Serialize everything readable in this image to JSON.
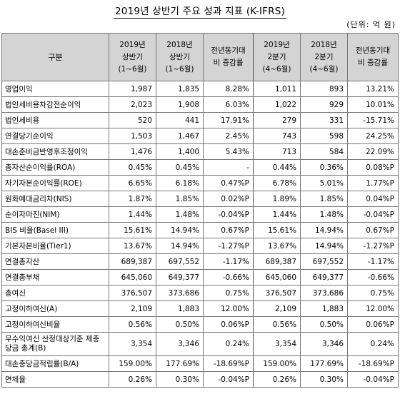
{
  "title": "2019년 상반기 주요 성과 지표 (K-IFRS)",
  "unit": "(단위: 억 원)",
  "headers": {
    "category": "구분",
    "h1_2019": [
      "2019년",
      "상반기",
      "(1~6월)"
    ],
    "h1_2018": [
      "2018년",
      "상반기",
      "(1~6월)"
    ],
    "h1_change": [
      "전년동기대",
      "비 증감률"
    ],
    "q2_2019": [
      "2019년",
      "2분기",
      "(4~6월)"
    ],
    "q2_2018": [
      "2018년",
      "2분기",
      "(4~6월)"
    ],
    "q2_change": [
      "전년동기대",
      "비 증감률"
    ]
  },
  "rows": [
    {
      "label": "영업이익",
      "values": [
        "1,987",
        "1,835",
        "8.28%",
        "1,011",
        "893",
        "13.21%"
      ]
    },
    {
      "label": "법인세비용차감전순이익",
      "values": [
        "2,023",
        "1,908",
        "6.03%",
        "1,022",
        "929",
        "10.01%"
      ]
    },
    {
      "label": "법인세비용",
      "values": [
        "520",
        "441",
        "17.91%",
        "279",
        "331",
        "-15.71%"
      ]
    },
    {
      "label": "연결당기순이익",
      "values": [
        "1,503",
        "1,467",
        "2.45%",
        "743",
        "598",
        "24.25%"
      ]
    },
    {
      "label": "대손준비금반영후조정이익",
      "values": [
        "1,476",
        "1,400",
        "5.43%",
        "713",
        "584",
        "22.09%"
      ]
    },
    {
      "label": "총자산순이익률(ROA)",
      "values": [
        "0.45%",
        "0.45%",
        "-",
        "0.44%",
        "0.36%",
        "0.08%P"
      ]
    },
    {
      "label": "자기자본순이익률(ROE)",
      "values": [
        "6.65%",
        "6.18%",
        "0.47%P",
        "6.78%",
        "5.01%",
        "1.77%P"
      ]
    },
    {
      "label": "원화예대금리차(NIS)",
      "values": [
        "1.87%",
        "1.85%",
        "0.02%P",
        "1.89%",
        "1.85%",
        "0.04%P"
      ]
    },
    {
      "label": "순이자마진(NIM)",
      "values": [
        "1.44%",
        "1.48%",
        "-0.04%P",
        "1.44%",
        "1.48%",
        "-0.04%P"
      ]
    },
    {
      "label": "BIS 비율(Basel III)",
      "values": [
        "15.61%",
        "14.94%",
        "0.67%P",
        "15.61%",
        "14.94%",
        "0.67%P"
      ]
    },
    {
      "label": "기본자본비율(Tier1)",
      "values": [
        "13.67%",
        "14.94%",
        "-1.27%P",
        "13.67%",
        "14.94%",
        "-1.27%P"
      ]
    },
    {
      "label": "연결총자산",
      "values": [
        "689,387",
        "697,552",
        "-1.17%",
        "689,387",
        "697,552",
        "-1.17%"
      ]
    },
    {
      "label": "연결총부채",
      "values": [
        "645,060",
        "649,377",
        "-0.66%",
        "645,060",
        "649,377",
        "-0.66%"
      ]
    },
    {
      "label": "총여신",
      "values": [
        "376,507",
        "373,686",
        "0.75%",
        "376,507",
        "373,686",
        "0.75%"
      ]
    },
    {
      "label": "고정이하여신(A)",
      "values": [
        "2,109",
        "1,883",
        "12.00%",
        "2,109",
        "1,883",
        "12.00%"
      ]
    },
    {
      "label": "고정이하여신비율",
      "values": [
        "0.56%",
        "0.50%",
        "0.06%P",
        "0.56%",
        "0.50%",
        "0.06%P"
      ]
    },
    {
      "label": "무수익여신 산정대상기준 제충당금 총계(B)",
      "values": [
        "3,354",
        "3,346",
        "0.24%",
        "3,354",
        "3,346",
        "0.24%"
      ],
      "tall": true
    },
    {
      "label": "대손충당금적립률(B/A)",
      "values": [
        "159.00%",
        "177.69%",
        "-18.69%P",
        "159.00%",
        "177.69%",
        "-18.69%P"
      ]
    },
    {
      "label": "연체율",
      "values": [
        "0.26%",
        "0.30%",
        "-0.04%P",
        "0.26%",
        "0.30%",
        "-0.04%P"
      ]
    }
  ]
}
